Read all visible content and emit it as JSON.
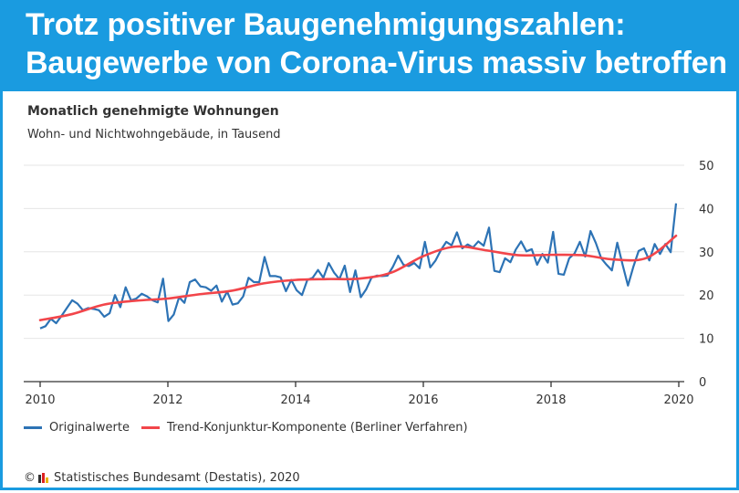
{
  "header": {
    "line1": "Trotz positiver Baugenehmigungszahlen:",
    "line2": "Baugewerbe von Corona-Virus massiv betroffen"
  },
  "colors": {
    "header": "#1a9be0",
    "original": "#2d73b5",
    "trend": "#f2454a"
  },
  "chart_data": {
    "type": "line",
    "title": "Monatlich genehmigte Wohnungen",
    "subtitle": "Wohn- und Nichtwohngebäude, in Tausend",
    "xlabel": "",
    "ylabel": "",
    "xlim": [
      2010,
      2020
    ],
    "ylim": [
      0,
      50
    ],
    "xticks": [
      "2010",
      "2012",
      "2014",
      "2016",
      "2018",
      "2020"
    ],
    "yticks": [
      "0",
      "10",
      "20",
      "30",
      "40",
      "50"
    ],
    "grid": true,
    "legend": "bottom-left",
    "y_axis_side": "right",
    "series": [
      {
        "name": "Originalwerte",
        "start": "2010-01",
        "frequency": "monthly",
        "values": [
          12.3,
          12.8,
          14.5,
          13.5,
          15.2,
          17,
          18.8,
          18,
          16.5,
          17,
          16.8,
          16.5,
          15,
          15.8,
          20,
          17.2,
          21.8,
          18.8,
          19.2,
          20.3,
          19.7,
          18.8,
          18.3,
          23.8,
          14,
          15.5,
          19.5,
          18.2,
          23,
          23.6,
          22,
          21.8,
          21,
          22.2,
          18.5,
          20.8,
          17.8,
          18.1,
          19.7,
          24,
          23,
          23,
          28.8,
          24.4,
          24.4,
          24.1,
          20.9,
          23.5,
          21.1,
          20,
          23.5,
          24,
          25.8,
          24,
          27.4,
          25.2,
          23.7,
          26.8,
          20.7,
          25.7,
          19.5,
          21.3,
          24,
          24.5,
          24.4,
          24.5,
          26.5,
          29.1,
          27,
          26.7,
          27.4,
          26.2,
          32.3,
          26.4,
          28,
          30.4,
          32.3,
          31.5,
          34.5,
          30.8,
          31.7,
          31,
          32.4,
          31.4,
          35.6,
          25.6,
          25.3,
          28.5,
          27.6,
          30.5,
          32.4,
          30.1,
          30.6,
          27,
          29.5,
          27.5,
          34.6,
          24.9,
          24.7,
          28.5,
          29.6,
          32.3,
          28.9,
          34.8,
          32,
          28.5,
          27,
          25.7,
          32.1,
          27,
          22.2,
          26.5,
          30.2,
          30.8,
          28,
          31.8,
          29.5,
          31.8,
          29.9,
          41.2
        ]
      },
      {
        "name": "Trend-Konjunktur-Komponente (Berliner Verfahren)",
        "points": [
          {
            "x": "2010-01",
            "y": 14.2
          },
          {
            "x": "2010-07",
            "y": 15.6
          },
          {
            "x": "2011-01",
            "y": 17.8
          },
          {
            "x": "2011-07",
            "y": 18.7
          },
          {
            "x": "2012-01",
            "y": 19.2
          },
          {
            "x": "2012-07",
            "y": 20.2
          },
          {
            "x": "2013-01",
            "y": 21
          },
          {
            "x": "2013-07",
            "y": 22.7
          },
          {
            "x": "2014-01",
            "y": 23.5
          },
          {
            "x": "2014-07",
            "y": 23.7
          },
          {
            "x": "2015-01",
            "y": 23.8
          },
          {
            "x": "2015-07",
            "y": 25.2
          },
          {
            "x": "2016-01",
            "y": 29
          },
          {
            "x": "2016-07",
            "y": 31.2
          },
          {
            "x": "2017-01",
            "y": 30.3
          },
          {
            "x": "2017-07",
            "y": 29.2
          },
          {
            "x": "2018-01",
            "y": 29.3
          },
          {
            "x": "2018-07",
            "y": 29.2
          },
          {
            "x": "2019-01",
            "y": 28.2
          },
          {
            "x": "2019-07",
            "y": 28.6
          },
          {
            "x": "2019-12",
            "y": 33.7
          }
        ]
      }
    ]
  },
  "footer": {
    "text": "Statistisches Bundesamt (Destatis), 2020",
    "copyright": "©"
  }
}
